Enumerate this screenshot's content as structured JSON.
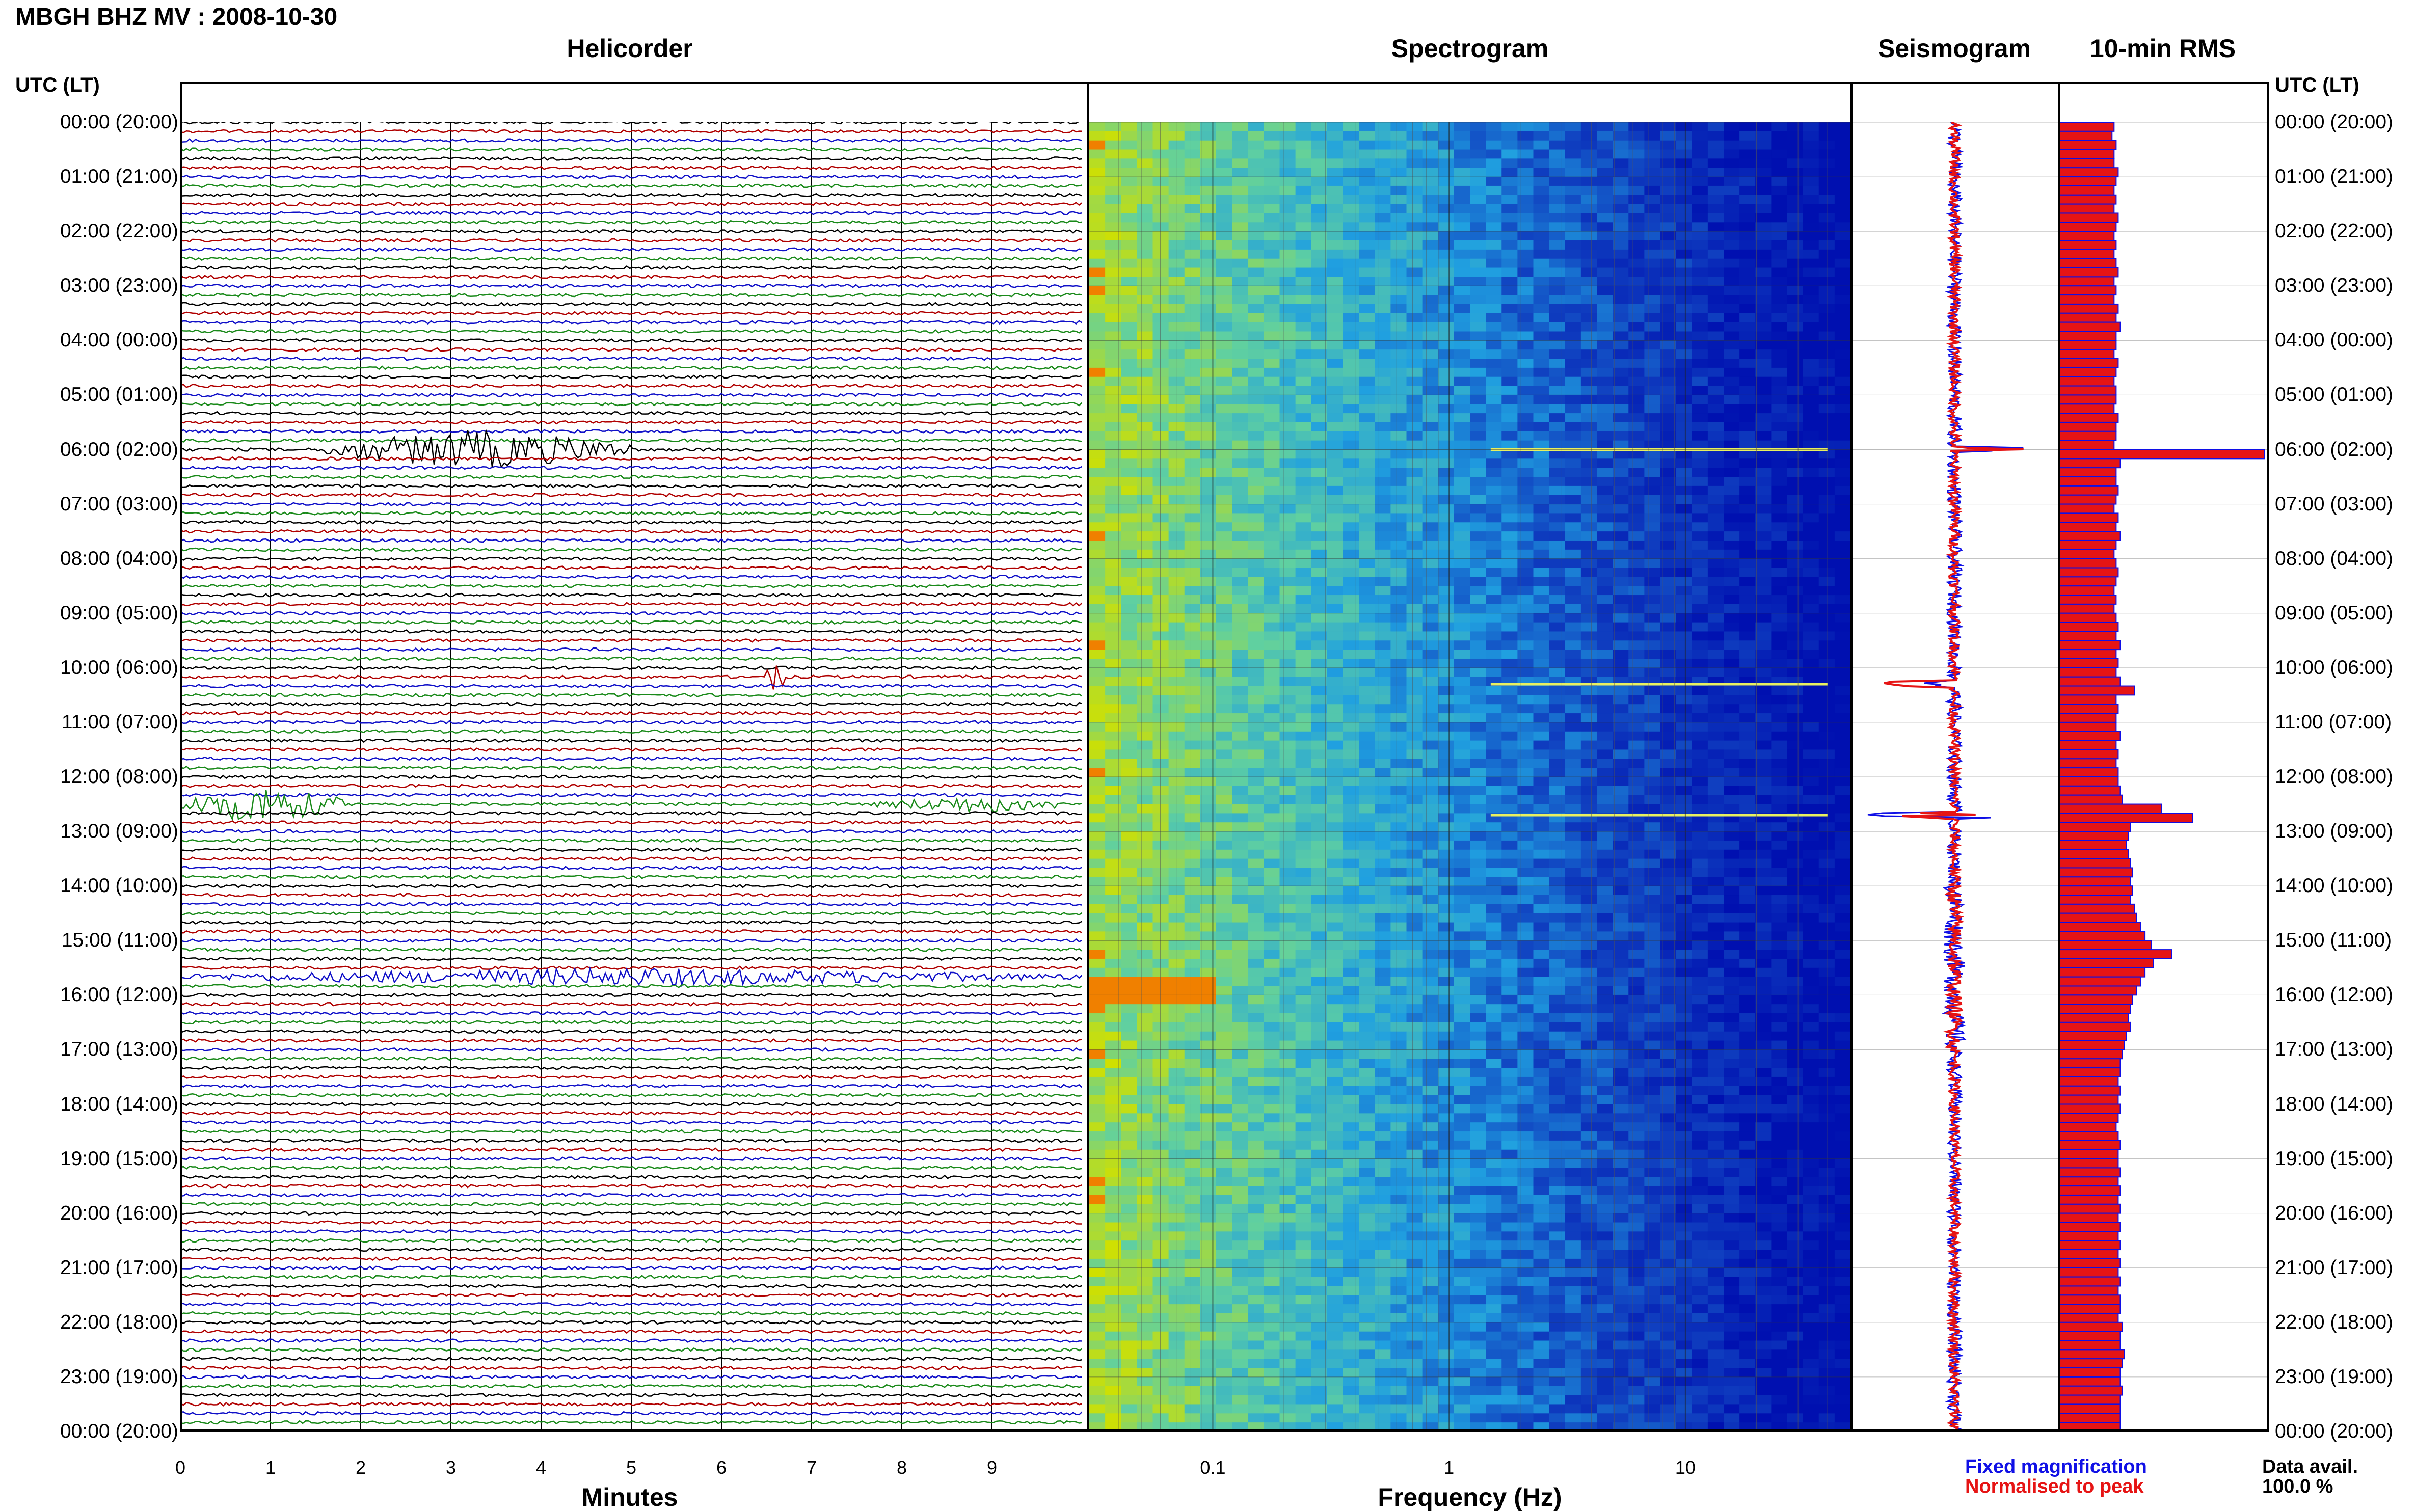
{
  "header": {
    "title": "MBGH BHZ MV : 2008-10-30"
  },
  "panels": {
    "helicorder": "Helicorder",
    "spectrogram": "Spectrogram",
    "seismogram": "Seismogram",
    "rms": "10-min RMS"
  },
  "axis": {
    "utc_left": "UTC (LT)",
    "utc_right": "UTC (LT)",
    "minutes_label": "Minutes",
    "freq_label": "Frequency (Hz)"
  },
  "time_labels": [
    "00:00 (20:00)",
    "01:00 (21:00)",
    "02:00 (22:00)",
    "03:00 (23:00)",
    "04:00 (00:00)",
    "05:00 (01:00)",
    "06:00 (02:00)",
    "07:00 (03:00)",
    "08:00 (04:00)",
    "09:00 (05:00)",
    "10:00 (06:00)",
    "11:00 (07:00)",
    "12:00 (08:00)",
    "13:00 (09:00)",
    "14:00 (10:00)",
    "15:00 (11:00)",
    "16:00 (12:00)",
    "17:00 (13:00)",
    "18:00 (14:00)",
    "19:00 (15:00)",
    "20:00 (16:00)",
    "21:00 (17:00)",
    "22:00 (18:00)",
    "23:00 (19:00)",
    "00:00 (20:00)"
  ],
  "legend": {
    "fixed": "Fixed magnification",
    "normalised": "Normalised to peak",
    "avail_label": "Data avail.",
    "avail_value": "100.0 %"
  },
  "colors": {
    "fixed": "#1010e6",
    "normalised": "#e61414"
  },
  "chart_data": [
    {
      "type": "line",
      "title": "Helicorder",
      "xlabel": "Minutes",
      "x_ticks": [
        "0",
        "1",
        "2",
        "3",
        "4",
        "5",
        "6",
        "7",
        "8",
        "9"
      ],
      "xlim": [
        0,
        10
      ],
      "rows_per_hour": 6,
      "hours": 24,
      "trace_colors": [
        "#000000",
        "#b00000",
        "#1010c8",
        "#1a8a1a"
      ],
      "events": [
        {
          "hour": 6.0,
          "minute_start": 1.6,
          "minute_end": 5.0,
          "amplitude": "large"
        },
        {
          "hour": 10.1,
          "minute_start": 6.5,
          "minute_end": 6.7,
          "amplitude": "large"
        },
        {
          "hour": 12.5,
          "minute_start": 0.0,
          "minute_end": 1.8,
          "amplitude": "large"
        },
        {
          "hour": 12.5,
          "minute_start": 7.7,
          "minute_end": 10.0,
          "amplitude": "medium"
        },
        {
          "hour": 15.7,
          "minute_start": 0.0,
          "minute_end": 10.0,
          "amplitude": "medium"
        }
      ]
    },
    {
      "type": "heatmap",
      "title": "Spectrogram",
      "xlabel": "Frequency (Hz)",
      "x_scale": "log",
      "x_ticks": [
        "0.1",
        "1",
        "10"
      ],
      "xlim": [
        0.03,
        50
      ],
      "colormap": [
        "#d0e000",
        "#60d0a0",
        "#20a0e0",
        "#1040c0",
        "#0010b0"
      ]
    },
    {
      "type": "line",
      "title": "Seismogram",
      "series": [
        {
          "name": "Fixed magnification",
          "color": "#1010e6"
        },
        {
          "name": "Normalised to peak",
          "color": "#e61414"
        }
      ],
      "spikes_hours": [
        6.0,
        10.3,
        12.7
      ]
    },
    {
      "type": "bar",
      "title": "10-min RMS",
      "orientation": "horizontal",
      "interval_minutes": 10,
      "values": [
        0.27,
        0.26,
        0.28,
        0.27,
        0.27,
        0.29,
        0.28,
        0.27,
        0.28,
        0.27,
        0.29,
        0.28,
        0.27,
        0.28,
        0.27,
        0.28,
        0.29,
        0.27,
        0.28,
        0.27,
        0.29,
        0.28,
        0.3,
        0.28,
        0.28,
        0.27,
        0.29,
        0.28,
        0.27,
        0.28,
        0.28,
        0.27,
        0.29,
        0.28,
        0.28,
        0.27,
        1.0,
        0.3,
        0.28,
        0.28,
        0.29,
        0.28,
        0.27,
        0.29,
        0.28,
        0.3,
        0.28,
        0.27,
        0.28,
        0.29,
        0.28,
        0.27,
        0.28,
        0.27,
        0.28,
        0.29,
        0.28,
        0.3,
        0.28,
        0.29,
        0.28,
        0.3,
        0.37,
        0.28,
        0.29,
        0.28,
        0.28,
        0.3,
        0.28,
        0.29,
        0.28,
        0.29,
        0.29,
        0.3,
        0.31,
        0.5,
        0.65,
        0.35,
        0.34,
        0.33,
        0.34,
        0.35,
        0.36,
        0.35,
        0.36,
        0.35,
        0.37,
        0.38,
        0.4,
        0.42,
        0.45,
        0.55,
        0.46,
        0.42,
        0.4,
        0.38,
        0.36,
        0.35,
        0.34,
        0.35,
        0.33,
        0.32,
        0.31,
        0.3,
        0.3,
        0.29,
        0.3,
        0.29,
        0.3,
        0.29,
        0.28,
        0.29,
        0.3,
        0.29,
        0.29,
        0.3,
        0.29,
        0.3,
        0.29,
        0.3,
        0.29,
        0.3,
        0.29,
        0.3,
        0.29,
        0.3,
        0.29,
        0.3,
        0.29,
        0.3,
        0.3,
        0.29,
        0.31,
        0.3,
        0.3,
        0.32,
        0.31,
        0.3,
        0.3,
        0.31,
        0.3,
        0.3,
        0.3,
        0.3
      ]
    }
  ]
}
